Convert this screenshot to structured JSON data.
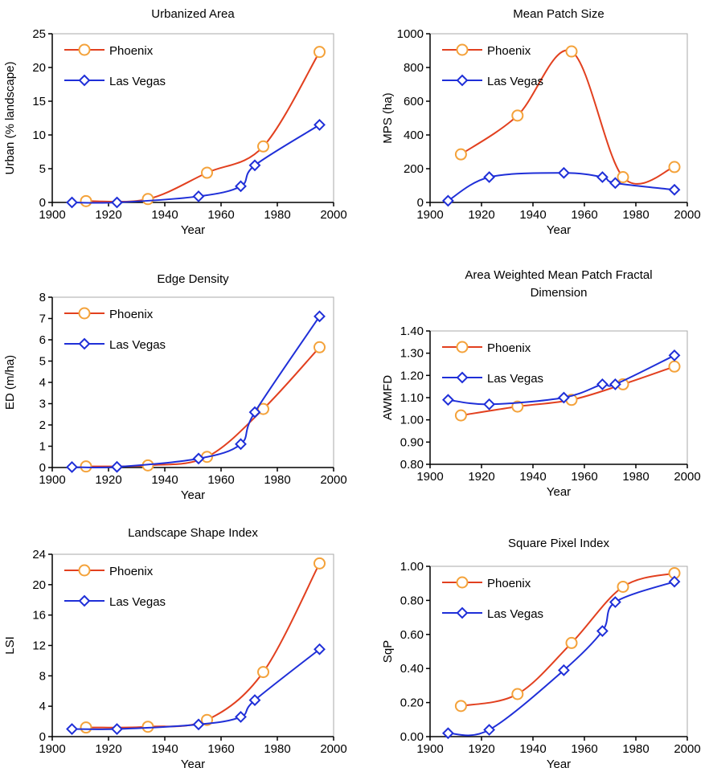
{
  "chart_data": [
    {
      "type": "line",
      "title": "Urbanized Area",
      "xlabel": "Year",
      "ylabel": "Urban (% landscape)",
      "xlim": [
        1900,
        2000
      ],
      "xticks": [
        1900,
        1920,
        1940,
        1960,
        1980,
        2000
      ],
      "ylim": [
        0,
        25
      ],
      "yticks": [
        0,
        5,
        10,
        15,
        20,
        25
      ],
      "legend": "upper left",
      "series": [
        {
          "name": "Phoenix",
          "color": "#e2401f",
          "marker": "circle",
          "marker_color": "#f4a23a",
          "x": [
            1912,
            1934,
            1955,
            1975,
            1995
          ],
          "values": [
            0.2,
            0.5,
            4.4,
            8.3,
            22.3
          ]
        },
        {
          "name": "Las Vegas",
          "color": "#1f2fd8",
          "marker": "diamond",
          "marker_color": "#1f2fd8",
          "x": [
            1907,
            1923,
            1952,
            1967,
            1972,
            1995
          ],
          "values": [
            0,
            0,
            0.9,
            2.4,
            5.5,
            11.5
          ]
        }
      ]
    },
    {
      "type": "line",
      "title": "Mean Patch Size",
      "xlabel": "Year",
      "ylabel": "MPS (ha)",
      "xlim": [
        1900,
        2000
      ],
      "xticks": [
        1900,
        1920,
        1940,
        1960,
        1980,
        2000
      ],
      "ylim": [
        0,
        1000
      ],
      "yticks": [
        0,
        200,
        400,
        600,
        800,
        1000
      ],
      "legend": "upper left",
      "series": [
        {
          "name": "Phoenix",
          "color": "#e2401f",
          "marker": "circle",
          "marker_color": "#f4a23a",
          "x": [
            1912,
            1934,
            1955,
            1975,
            1995
          ],
          "values": [
            285,
            515,
            895,
            150,
            210
          ]
        },
        {
          "name": "Las Vegas",
          "color": "#1f2fd8",
          "marker": "diamond",
          "marker_color": "#1f2fd8",
          "x": [
            1907,
            1923,
            1952,
            1967,
            1972,
            1995
          ],
          "values": [
            10,
            150,
            175,
            150,
            115,
            75
          ]
        }
      ]
    },
    {
      "type": "line",
      "title": "Edge Density",
      "xlabel": "Year",
      "ylabel": "ED (m/ha)",
      "xlim": [
        1900,
        2000
      ],
      "xticks": [
        1900,
        1920,
        1940,
        1960,
        1980,
        2000
      ],
      "ylim": [
        0,
        8
      ],
      "yticks": [
        0,
        1,
        2,
        3,
        4,
        5,
        6,
        7,
        8
      ],
      "legend": "upper left",
      "series": [
        {
          "name": "Phoenix",
          "color": "#e2401f",
          "marker": "circle",
          "marker_color": "#f4a23a",
          "x": [
            1912,
            1934,
            1955,
            1975,
            1995
          ],
          "values": [
            0.05,
            0.1,
            0.5,
            2.75,
            5.65
          ]
        },
        {
          "name": "Las Vegas",
          "color": "#1f2fd8",
          "marker": "diamond",
          "marker_color": "#1f2fd8",
          "x": [
            1907,
            1923,
            1952,
            1967,
            1972,
            1995
          ],
          "values": [
            0.02,
            0.03,
            0.42,
            1.1,
            2.6,
            7.1
          ]
        }
      ]
    },
    {
      "type": "line",
      "title": "Area Weighted Mean Patch Fractal Dimension",
      "xlabel": "Year",
      "ylabel": "AWMFD",
      "xlim": [
        1900,
        2000
      ],
      "xticks": [
        1900,
        1920,
        1940,
        1960,
        1980,
        2000
      ],
      "ylim": [
        0.8,
        1.4
      ],
      "yticks": [
        {
          "value": 0.8,
          "label": "0.80"
        },
        {
          "value": 0.9,
          "label": "0.90"
        },
        {
          "value": 1.0,
          "label": "1.00"
        },
        {
          "value": 1.1,
          "label": "1.10"
        },
        {
          "value": 1.2,
          "label": "1.20"
        },
        {
          "value": 1.3,
          "label": "1.30"
        },
        {
          "value": 1.4,
          "label": "1.40"
        }
      ],
      "legend": "upper left",
      "series": [
        {
          "name": "Phoenix",
          "color": "#e2401f",
          "marker": "circle",
          "marker_color": "#f4a23a",
          "x": [
            1912,
            1934,
            1955,
            1975,
            1995
          ],
          "values": [
            1.02,
            1.06,
            1.09,
            1.16,
            1.24
          ]
        },
        {
          "name": "Las Vegas",
          "color": "#1f2fd8",
          "marker": "diamond",
          "marker_color": "#1f2fd8",
          "x": [
            1907,
            1923,
            1952,
            1967,
            1972,
            1995
          ],
          "values": [
            1.09,
            1.07,
            1.1,
            1.16,
            1.16,
            1.29
          ]
        }
      ]
    },
    {
      "type": "line",
      "title": "Landscape Shape Index",
      "xlabel": "Year",
      "ylabel": "LSI",
      "xlim": [
        1900,
        2000
      ],
      "xticks": [
        1900,
        1920,
        1940,
        1960,
        1980,
        2000
      ],
      "ylim": [
        0,
        24
      ],
      "yticks": [
        0,
        4,
        8,
        12,
        16,
        20,
        24
      ],
      "legend": "upper left",
      "series": [
        {
          "name": "Phoenix",
          "color": "#e2401f",
          "marker": "circle",
          "marker_color": "#f4a23a",
          "x": [
            1912,
            1934,
            1955,
            1975,
            1995
          ],
          "values": [
            1.2,
            1.3,
            2.2,
            8.5,
            22.8
          ]
        },
        {
          "name": "Las Vegas",
          "color": "#1f2fd8",
          "marker": "diamond",
          "marker_color": "#1f2fd8",
          "x": [
            1907,
            1923,
            1952,
            1967,
            1972,
            1995
          ],
          "values": [
            1.0,
            1.0,
            1.6,
            2.6,
            4.8,
            11.5
          ]
        }
      ]
    },
    {
      "type": "line",
      "title": "Square Pixel Index",
      "xlabel": "Year",
      "ylabel": "SqP",
      "xlim": [
        1900,
        2000
      ],
      "xticks": [
        1900,
        1920,
        1940,
        1960,
        1980,
        2000
      ],
      "ylim": [
        0,
        1
      ],
      "yticks": [
        {
          "value": 0,
          "label": "0.00"
        },
        {
          "value": 0.2,
          "label": "0.20"
        },
        {
          "value": 0.4,
          "label": "0.40"
        },
        {
          "value": 0.6,
          "label": "0.60"
        },
        {
          "value": 0.8,
          "label": "0.80"
        },
        {
          "value": 1,
          "label": "1.00"
        }
      ],
      "legend": "upper left",
      "series": [
        {
          "name": "Phoenix",
          "color": "#e2401f",
          "marker": "circle",
          "marker_color": "#f4a23a",
          "x": [
            1912,
            1934,
            1955,
            1975,
            1995
          ],
          "values": [
            0.18,
            0.25,
            0.55,
            0.88,
            0.96
          ]
        },
        {
          "name": "Las Vegas",
          "color": "#1f2fd8",
          "marker": "diamond",
          "marker_color": "#1f2fd8",
          "x": [
            1907,
            1923,
            1952,
            1967,
            1972,
            1995
          ],
          "values": [
            0.02,
            0.04,
            0.39,
            0.62,
            0.79,
            0.91
          ]
        }
      ]
    }
  ]
}
